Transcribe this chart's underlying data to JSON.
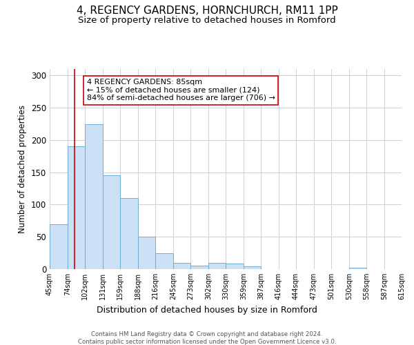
{
  "title": "4, REGENCY GARDENS, HORNCHURCH, RM11 1PP",
  "subtitle": "Size of property relative to detached houses in Romford",
  "xlabel": "Distribution of detached houses by size in Romford",
  "ylabel": "Number of detached properties",
  "bin_edges": [
    45,
    74,
    102,
    131,
    159,
    188,
    216,
    245,
    273,
    302,
    330,
    359,
    387,
    416,
    444,
    473,
    501,
    530,
    558,
    587,
    615
  ],
  "bar_heights": [
    70,
    190,
    225,
    145,
    110,
    50,
    25,
    10,
    5,
    10,
    9,
    4,
    0,
    0,
    0,
    0,
    0,
    2,
    0,
    0
  ],
  "bar_color": "#cce0f5",
  "bar_edge_color": "#6baed6",
  "property_size": 85,
  "red_line_color": "#cc0000",
  "annotation_text": "4 REGENCY GARDENS: 85sqm\n← 15% of detached houses are smaller (124)\n84% of semi-detached houses are larger (706) →",
  "annotation_box_color": "#ffffff",
  "annotation_box_edge_color": "#cc0000",
  "ylim": [
    0,
    310
  ],
  "yticks": [
    0,
    50,
    100,
    150,
    200,
    250,
    300
  ],
  "background_color": "#ffffff",
  "grid_color": "#d0d0d0",
  "footer_line1": "Contains HM Land Registry data © Crown copyright and database right 2024.",
  "footer_line2": "Contains public sector information licensed under the Open Government Licence v3.0.",
  "title_fontsize": 11,
  "subtitle_fontsize": 9.5,
  "annotation_fontsize": 8
}
